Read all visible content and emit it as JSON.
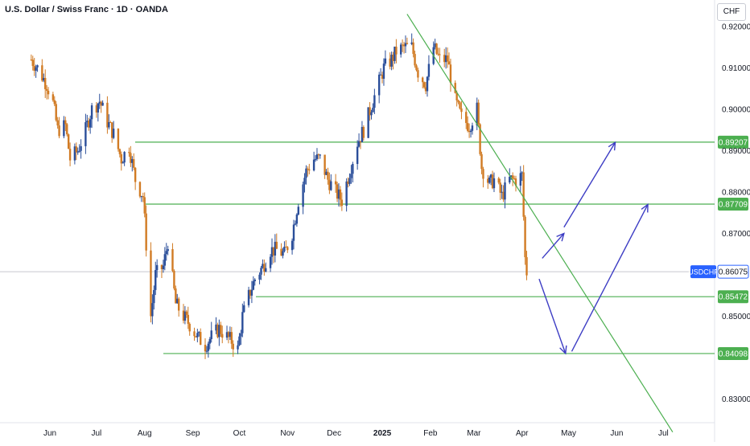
{
  "header": {
    "title": "U.S. Dollar / Swiss Franc · 1D · OANDA",
    "currency": "CHF"
  },
  "chart_data": {
    "type": "candlestick",
    "symbol": "USDCHF",
    "current_price": "0.86075",
    "ylim": [
      0.826,
      0.9225
    ],
    "y_ticks": [
      "0.92000",
      "0.91000",
      "0.90000",
      "0.89000",
      "0.88000",
      "0.87000",
      "0.85000",
      "0.83000"
    ],
    "x_ticks": [
      "Jun",
      "Jul",
      "Aug",
      "Sep",
      "Oct",
      "Nov",
      "Dec",
      "2025",
      "Feb",
      "Mar",
      "Apr",
      "May",
      "Jun",
      "Jul"
    ],
    "horizontal_levels": [
      {
        "label": "0.89207",
        "value": 0.89207
      },
      {
        "label": "0.87709",
        "value": 0.87709
      },
      {
        "label": "0.85472",
        "value": 0.85472
      },
      {
        "label": "0.84098",
        "value": 0.84098
      }
    ],
    "price_path": [
      [
        "2024-05-20",
        0.912
      ],
      [
        "2024-05-24",
        0.91
      ],
      [
        "2024-05-30",
        0.906
      ],
      [
        "2024-06-03",
        0.9015
      ],
      [
        "2024-06-06",
        0.895
      ],
      [
        "2024-06-11",
        0.896
      ],
      [
        "2024-06-14",
        0.888
      ],
      [
        "2024-06-19",
        0.89
      ],
      [
        "2024-06-24",
        0.895
      ],
      [
        "2024-06-28",
        0.9
      ],
      [
        "2024-07-03",
        0.902
      ],
      [
        "2024-07-08",
        0.897
      ],
      [
        "2024-07-12",
        0.894
      ],
      [
        "2024-07-17",
        0.888
      ],
      [
        "2024-07-22",
        0.891
      ],
      [
        "2024-07-26",
        0.883
      ],
      [
        "2024-07-31",
        0.879
      ],
      [
        "2024-08-05",
        0.85
      ],
      [
        "2024-08-08",
        0.86
      ],
      [
        "2024-08-13",
        0.862
      ],
      [
        "2024-08-16",
        0.868
      ],
      [
        "2024-08-21",
        0.853
      ],
      [
        "2024-08-26",
        0.85
      ],
      [
        "2024-08-30",
        0.848
      ],
      [
        "2024-09-04",
        0.845
      ],
      [
        "2024-09-09",
        0.843
      ],
      [
        "2024-09-13",
        0.845
      ],
      [
        "2024-09-18",
        0.847
      ],
      [
        "2024-09-23",
        0.845
      ],
      [
        "2024-09-26",
        0.844
      ],
      [
        "2024-09-30",
        0.842
      ],
      [
        "2024-10-03",
        0.85
      ],
      [
        "2024-10-08",
        0.856
      ],
      [
        "2024-10-11",
        0.859
      ],
      [
        "2024-10-16",
        0.862
      ],
      [
        "2024-10-21",
        0.866
      ],
      [
        "2024-10-25",
        0.866
      ],
      [
        "2024-10-30",
        0.865
      ],
      [
        "2024-11-04",
        0.87
      ],
      [
        "2024-11-08",
        0.878
      ],
      [
        "2024-11-13",
        0.885
      ],
      [
        "2024-11-18",
        0.888
      ],
      [
        "2024-11-22",
        0.888
      ],
      [
        "2024-11-27",
        0.883
      ],
      [
        "2024-12-02",
        0.88
      ],
      [
        "2024-12-06",
        0.878
      ],
      [
        "2024-12-11",
        0.885
      ],
      [
        "2024-12-16",
        0.892
      ],
      [
        "2024-12-20",
        0.895
      ],
      [
        "2024-12-26",
        0.902
      ],
      [
        "2025-01-02",
        0.91
      ],
      [
        "2025-01-07",
        0.912
      ],
      [
        "2025-01-10",
        0.914
      ],
      [
        "2025-01-15",
        0.915
      ],
      [
        "2025-01-20",
        0.915
      ],
      [
        "2025-01-24",
        0.909
      ],
      [
        "2025-01-29",
        0.906
      ],
      [
        "2025-02-03",
        0.915
      ],
      [
        "2025-02-07",
        0.912
      ],
      [
        "2025-02-12",
        0.912
      ],
      [
        "2025-02-17",
        0.902
      ],
      [
        "2025-02-21",
        0.898
      ],
      [
        "2025-02-26",
        0.896
      ],
      [
        "2025-03-03",
        0.9
      ],
      [
        "2025-03-06",
        0.886
      ],
      [
        "2025-03-11",
        0.882
      ],
      [
        "2025-03-14",
        0.883
      ],
      [
        "2025-03-19",
        0.879
      ],
      [
        "2025-03-24",
        0.883
      ],
      [
        "2025-03-28",
        0.883
      ],
      [
        "2025-04-01",
        0.884
      ],
      [
        "2025-04-03",
        0.864
      ],
      [
        "2025-04-04",
        0.8607
      ]
    ],
    "trendline": {
      "from": [
        "2025-01-17",
        0.923
      ],
      "to": [
        "2025-07-07",
        0.822
      ]
    },
    "projection_arrows": [
      {
        "from": [
          "2025-04-14",
          0.864
        ],
        "to": [
          "2025-04-28",
          0.87
        ]
      },
      {
        "from": [
          "2025-04-28",
          0.8715
        ],
        "to": [
          "2025-05-31",
          0.892
        ]
      },
      {
        "from": [
          "2025-04-12",
          0.859
        ],
        "to": [
          "2025-04-29",
          0.841
        ]
      },
      {
        "from": [
          "2025-05-03",
          0.8415
        ],
        "to": [
          "2025-06-21",
          0.877
        ]
      }
    ]
  }
}
